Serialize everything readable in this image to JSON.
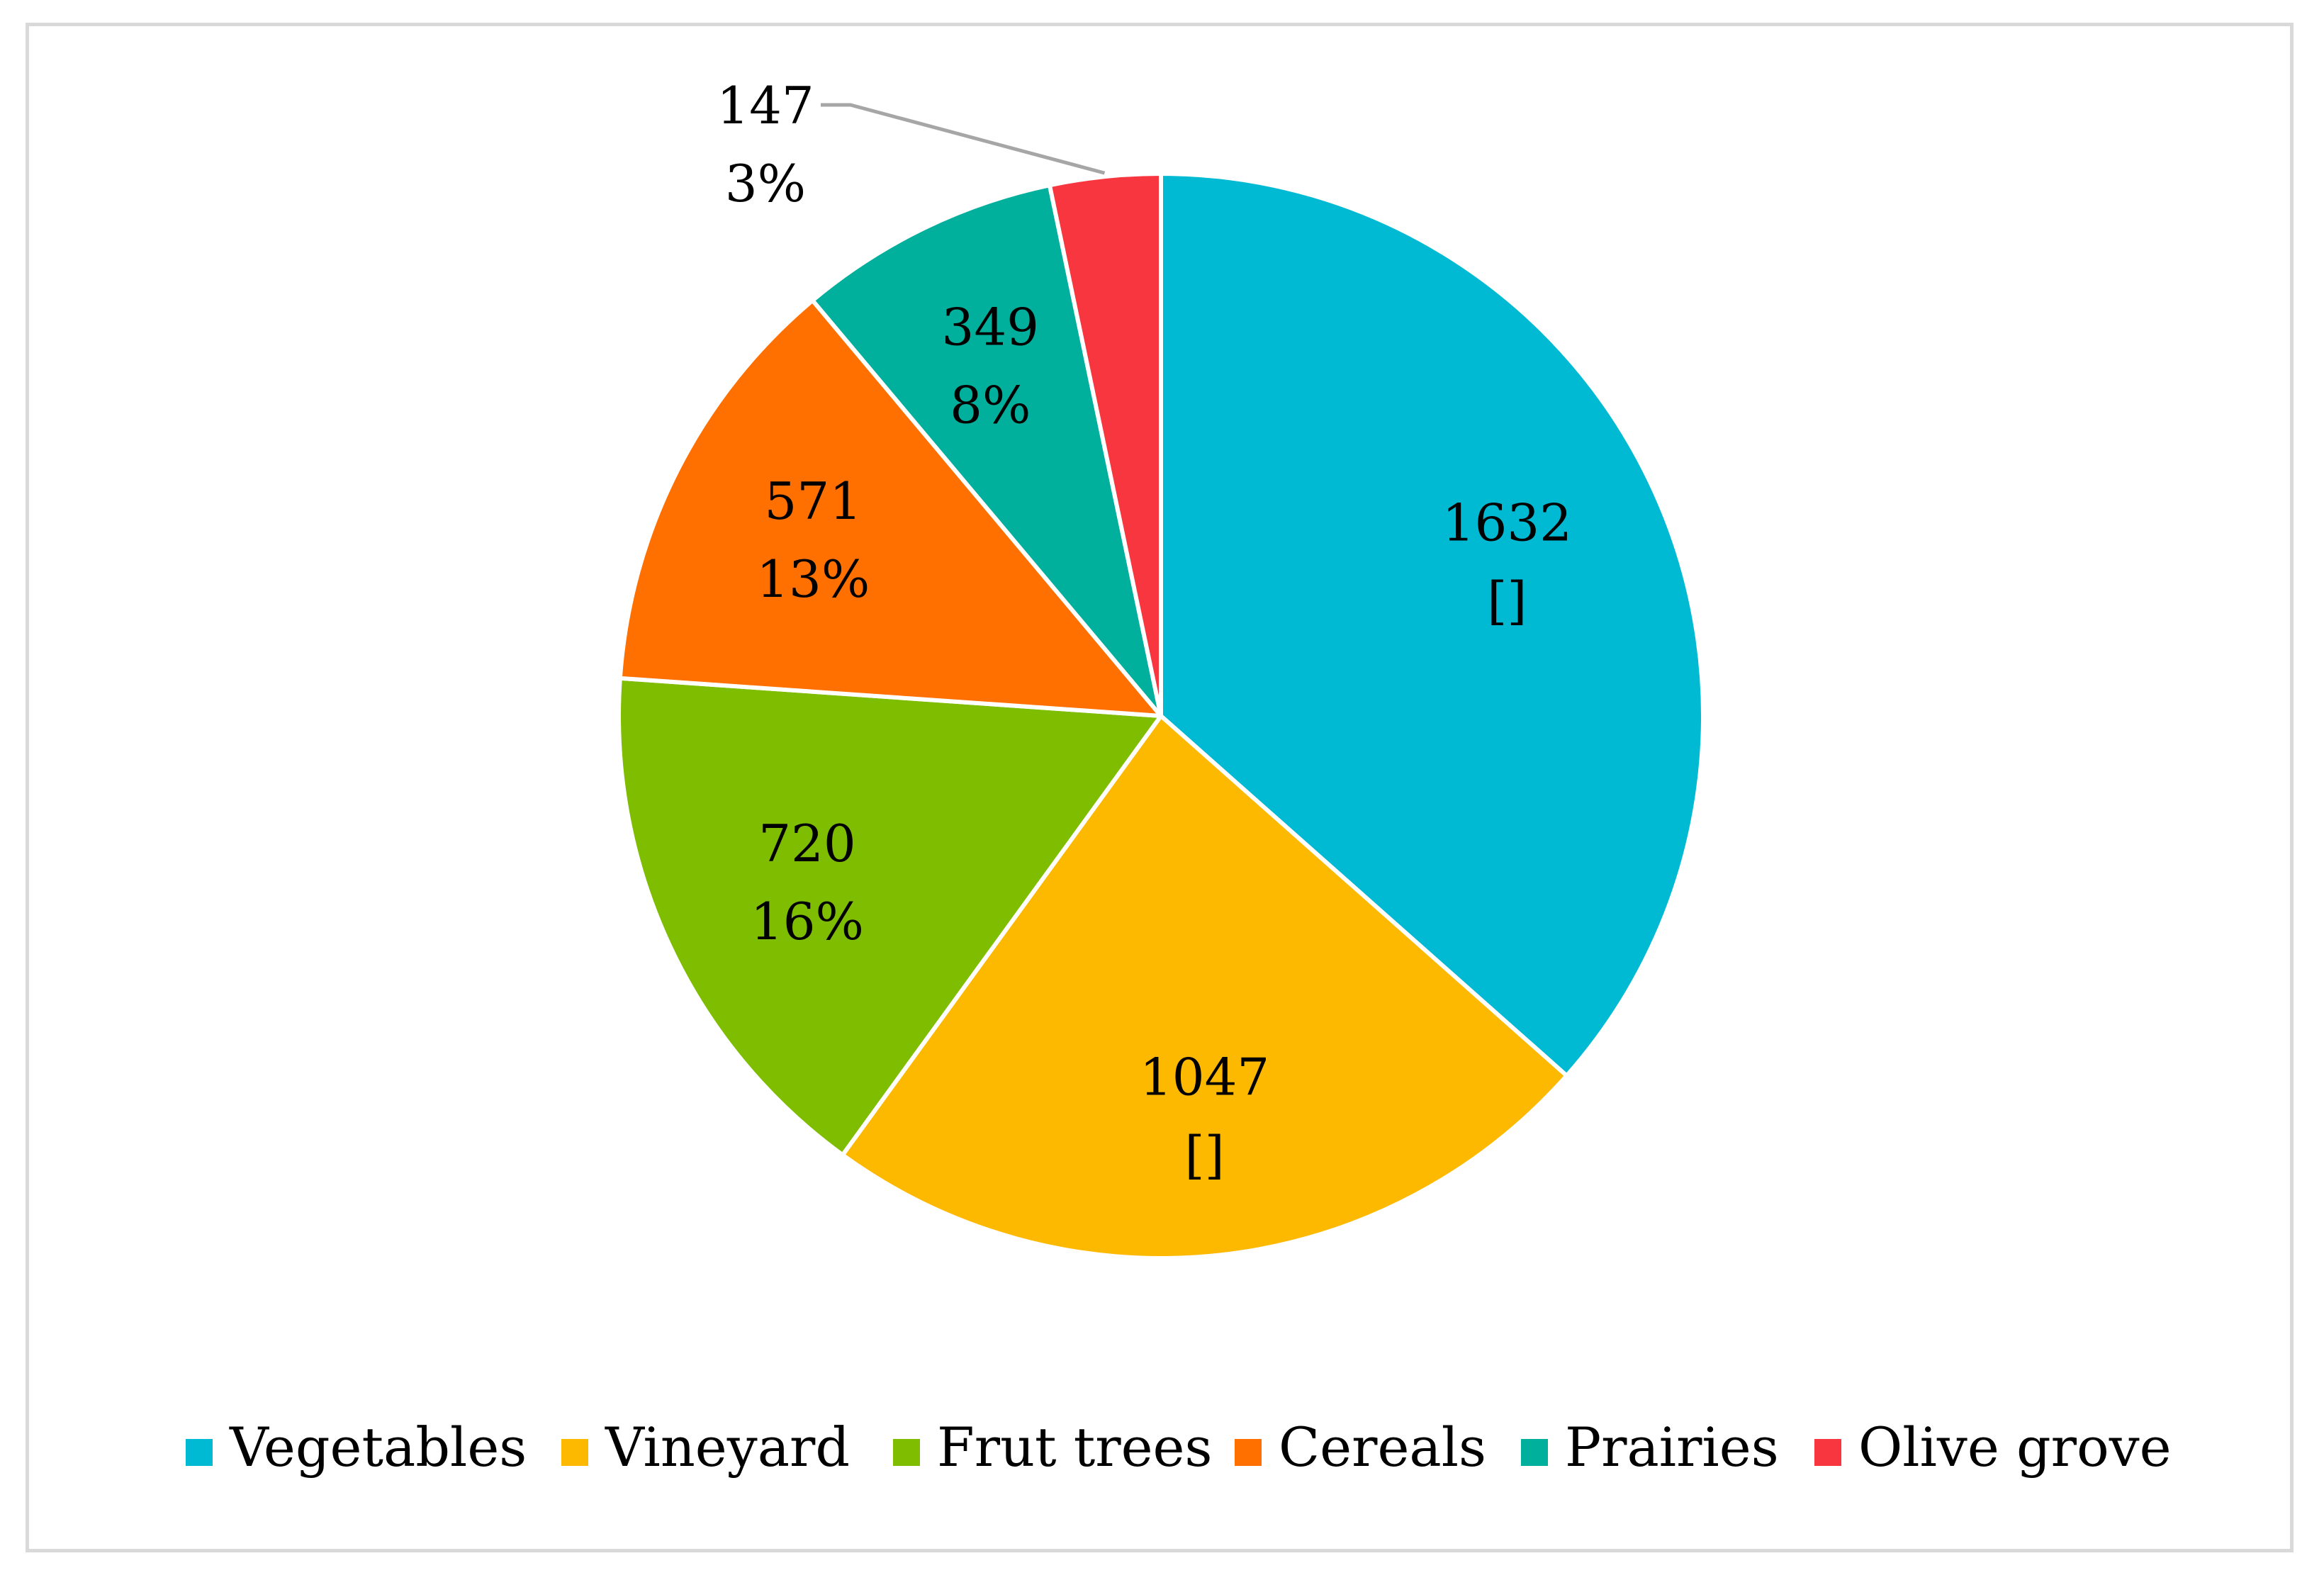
{
  "chart_data": {
    "type": "pie",
    "title": "",
    "categories": [
      "Vegetables",
      "Vineyard",
      "Frut trees",
      "Cereals",
      "Prairies",
      "Olive grove"
    ],
    "values": [
      1632,
      1047,
      720,
      571,
      349,
      147
    ],
    "percent_labels": [
      "[]",
      "[]",
      "16%",
      "13%",
      "8%",
      "3%"
    ],
    "colors": [
      "#00BAD4",
      "#FDB800",
      "#7FBD00",
      "#FF7000",
      "#00B09C",
      "#F7363F"
    ],
    "start_angle_deg": 0,
    "direction": "clockwise",
    "legend_position": "bottom",
    "leader_line_color": "#a6a6a6",
    "slice_border_color": "#ffffff"
  }
}
